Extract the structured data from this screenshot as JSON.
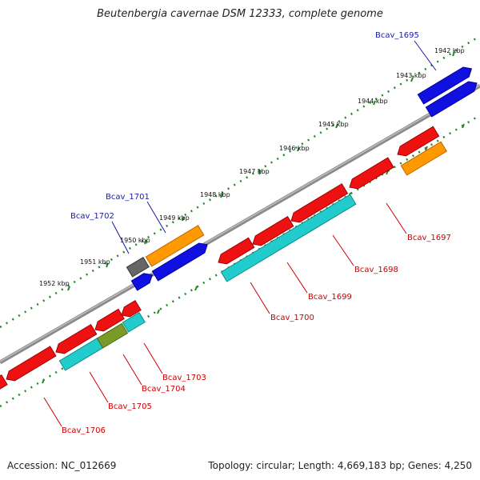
{
  "title": "Beutenbergia cavernae DSM 12333, complete genome",
  "footer": {
    "accession": "Accession: NC_012669",
    "topology": "Topology: circular; Length: 4,669,183 bp; Genes: 4,250"
  },
  "colors": {
    "forward": "#1010e0",
    "reverse": "#ee1111",
    "cyan": "#22cccc",
    "orange": "#ff9900",
    "gray": "#666666",
    "olive": "#7a9a2a",
    "backbone": "#8a8a8a",
    "ticks": "#228822",
    "label_blue": "#1a1aaa",
    "label_red": "#cc0000"
  },
  "kbp_labels": [
    "1942 kbp",
    "1943 kbp",
    "1944 kbp",
    "1945 kbp",
    "1946 kbp",
    "1947 kbp",
    "1948 kbp",
    "1949 kbp",
    "1950 kbp",
    "1951 kbp",
    "1952 kbp"
  ],
  "gene_labels": [
    {
      "id": "Bcav_1695",
      "strand": "forward"
    },
    {
      "id": "Bcav_1701",
      "strand": "forward"
    },
    {
      "id": "Bcav_1702",
      "strand": "forward"
    },
    {
      "id": "Bcav_1697",
      "strand": "reverse"
    },
    {
      "id": "Bcav_1698",
      "strand": "reverse"
    },
    {
      "id": "Bcav_1699",
      "strand": "reverse"
    },
    {
      "id": "Bcav_1700",
      "strand": "reverse"
    },
    {
      "id": "Bcav_1703",
      "strand": "reverse"
    },
    {
      "id": "Bcav_1704",
      "strand": "reverse"
    },
    {
      "id": "Bcav_1705",
      "strand": "reverse"
    },
    {
      "id": "Bcav_1706",
      "strand": "reverse"
    }
  ]
}
